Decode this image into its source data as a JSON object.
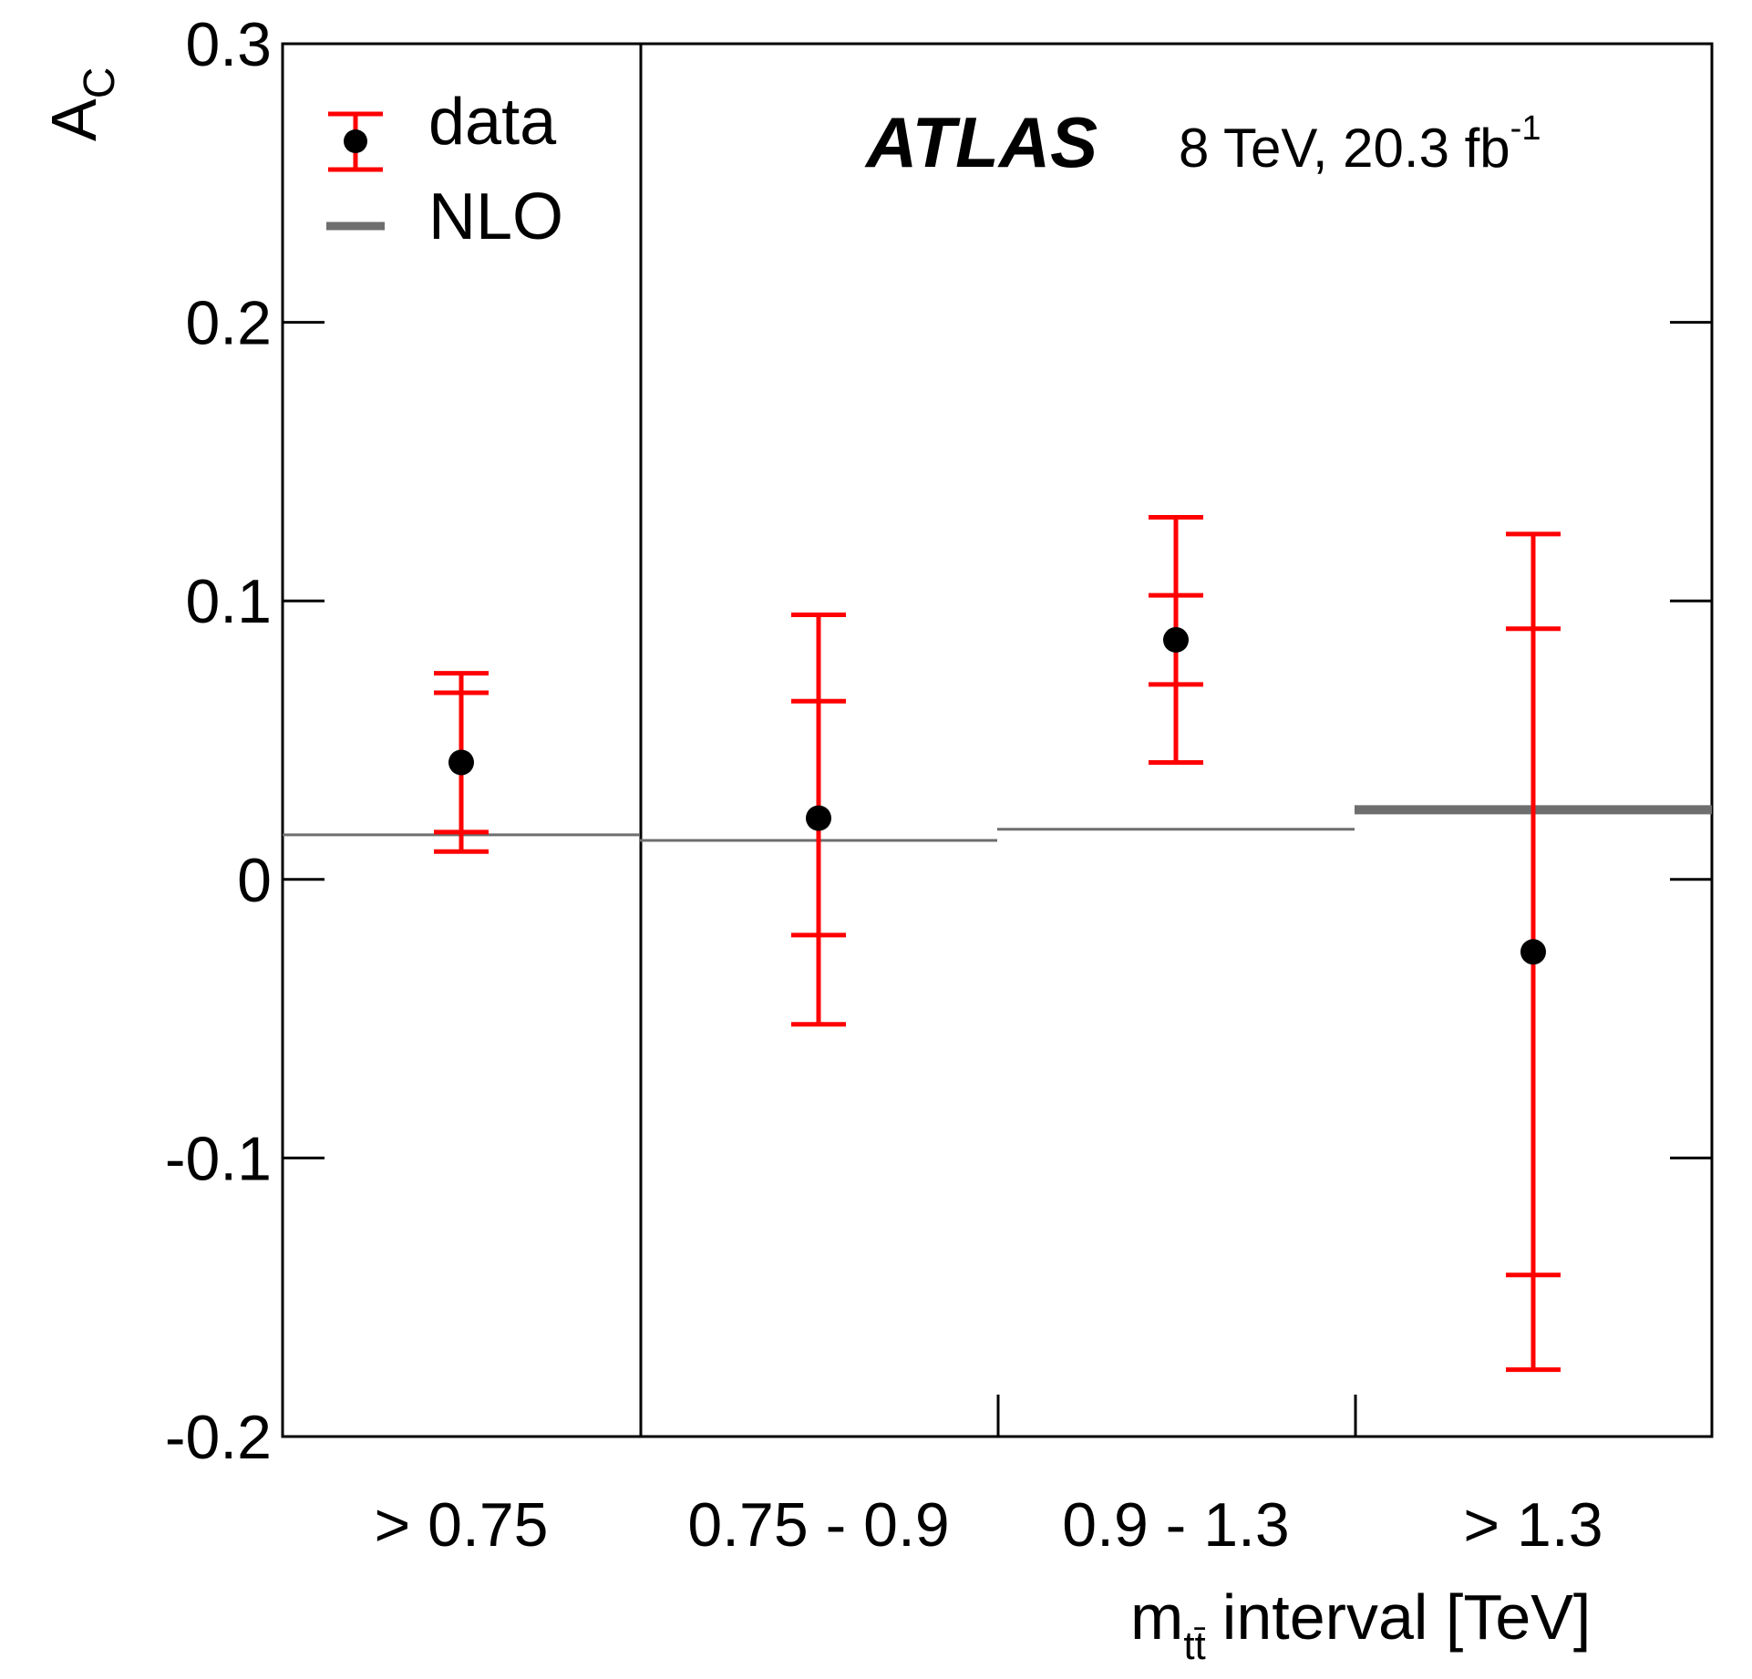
{
  "chart_data": {
    "type": "scatter",
    "title": "",
    "xlabel": "m_tt̄ interval [TeV]",
    "ylabel": "A_C",
    "ylim": [
      -0.2,
      0.3
    ],
    "yticks": [
      "0.3",
      "0.2",
      "0.1",
      "0",
      "-0.1",
      "-0.2"
    ],
    "ytick_values": [
      0.3,
      0.2,
      0.1,
      0,
      -0.1,
      -0.2
    ],
    "categories": [
      "> 0.75",
      "0.75 - 0.9",
      "0.9 - 1.3",
      "> 1.3"
    ],
    "series": [
      {
        "name": "data",
        "color": "#ff0000",
        "values": [
          0.042,
          0.022,
          0.086,
          -0.026
        ],
        "stat_err": [
          [
            0.017,
            0.067
          ],
          [
            -0.02,
            0.064
          ],
          [
            0.07,
            0.102
          ],
          [
            -0.142,
            0.09
          ]
        ],
        "total_err": [
          [
            0.01,
            0.074
          ],
          [
            -0.052,
            0.095
          ],
          [
            0.042,
            0.13
          ],
          [
            -0.176,
            0.124
          ]
        ]
      },
      {
        "name": "NLO",
        "color": "#6e6e6e",
        "values": [
          0.016,
          0.014,
          0.018,
          0.025
        ]
      }
    ],
    "legend": {
      "data_label": "data",
      "nlo_label": "NLO",
      "placement": "top-left"
    },
    "annotation": {
      "experiment": "ATLAS",
      "energy": "8 TeV, 20.3 fb",
      "lumi_exponent": "-1"
    },
    "x_title_parts": {
      "m": "m",
      "subscript": "tt̄",
      "rest": "interval [TeV]"
    },
    "y_title_parts": {
      "main": "A",
      "subscript": "C"
    }
  }
}
